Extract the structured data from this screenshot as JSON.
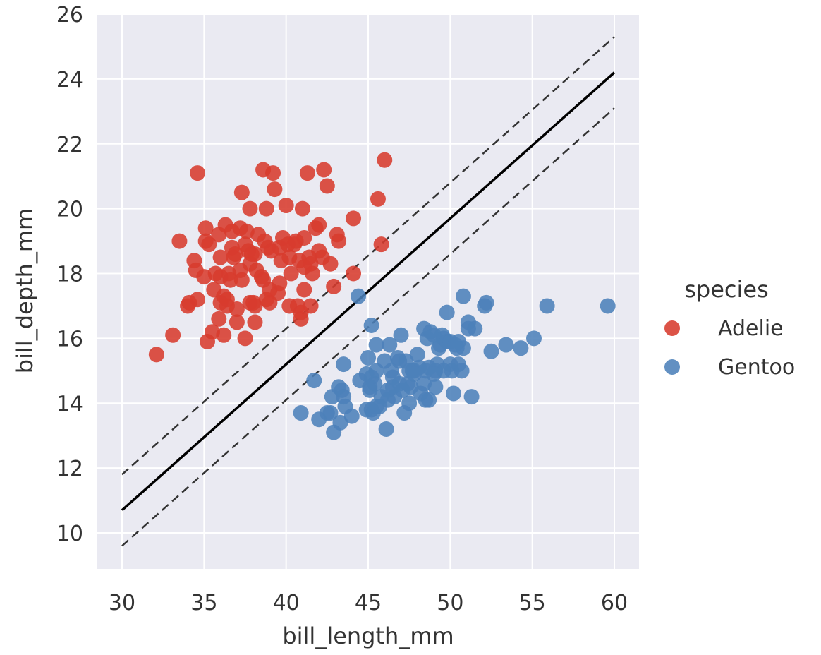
{
  "chart_data": {
    "type": "scatter",
    "title": "",
    "xlabel": "bill_length_mm",
    "ylabel": "bill_depth_mm",
    "xlim": [
      30,
      60
    ],
    "ylim": [
      10,
      26
    ],
    "xticks": [
      30,
      35,
      40,
      45,
      50,
      55,
      60
    ],
    "yticks": [
      10,
      12,
      14,
      16,
      18,
      20,
      22,
      24,
      26
    ],
    "grid": true,
    "background": "#EAEAF2",
    "legend": {
      "title": "species",
      "placement": "right"
    },
    "series": [
      {
        "name": "Adelie",
        "color": "#D73B2E",
        "points": [
          [
            32.1,
            15.5
          ],
          [
            33.1,
            16.1
          ],
          [
            33.5,
            19.0
          ],
          [
            34.1,
            17.1
          ],
          [
            34.4,
            18.4
          ],
          [
            34.5,
            18.1
          ],
          [
            34.6,
            21.1
          ],
          [
            34.6,
            17.2
          ],
          [
            35.0,
            17.9
          ],
          [
            35.1,
            19.4
          ],
          [
            35.2,
            15.9
          ],
          [
            35.3,
            18.9
          ],
          [
            35.5,
            16.2
          ],
          [
            35.6,
            17.5
          ],
          [
            35.7,
            18.0
          ],
          [
            35.9,
            19.2
          ],
          [
            36.0,
            17.9
          ],
          [
            36.0,
            17.1
          ],
          [
            36.2,
            16.1
          ],
          [
            36.2,
            17.3
          ],
          [
            36.3,
            19.5
          ],
          [
            36.4,
            17.0
          ],
          [
            36.5,
            18.0
          ],
          [
            36.6,
            17.8
          ],
          [
            36.7,
            18.8
          ],
          [
            36.8,
            18.5
          ],
          [
            36.9,
            18.6
          ],
          [
            37.0,
            16.9
          ],
          [
            37.2,
            18.1
          ],
          [
            37.3,
            20.5
          ],
          [
            37.3,
            17.8
          ],
          [
            37.5,
            18.9
          ],
          [
            37.6,
            19.3
          ],
          [
            37.7,
            18.7
          ],
          [
            37.8,
            17.1
          ],
          [
            37.8,
            20.0
          ],
          [
            37.9,
            18.6
          ],
          [
            38.0,
            17.1
          ],
          [
            38.1,
            18.6
          ],
          [
            38.2,
            18.1
          ],
          [
            38.3,
            19.2
          ],
          [
            38.5,
            17.9
          ],
          [
            38.6,
            21.2
          ],
          [
            38.7,
            19.0
          ],
          [
            38.8,
            17.2
          ],
          [
            38.9,
            18.8
          ],
          [
            39.0,
            17.5
          ],
          [
            39.1,
            18.7
          ],
          [
            39.2,
            21.1
          ],
          [
            39.3,
            20.6
          ],
          [
            39.5,
            17.4
          ],
          [
            39.6,
            18.8
          ],
          [
            39.7,
            18.4
          ],
          [
            39.8,
            19.1
          ],
          [
            40.0,
            20.1
          ],
          [
            40.1,
            18.9
          ],
          [
            40.2,
            17.0
          ],
          [
            40.3,
            18.0
          ],
          [
            40.5,
            18.9
          ],
          [
            40.6,
            19.0
          ],
          [
            40.7,
            17.0
          ],
          [
            40.8,
            18.4
          ],
          [
            40.9,
            16.6
          ],
          [
            41.0,
            20.0
          ],
          [
            41.1,
            18.2
          ],
          [
            41.1,
            19.1
          ],
          [
            41.3,
            21.1
          ],
          [
            41.4,
            18.5
          ],
          [
            41.5,
            18.3
          ],
          [
            41.6,
            18.0
          ],
          [
            41.8,
            19.4
          ],
          [
            42.0,
            19.5
          ],
          [
            42.2,
            18.5
          ],
          [
            42.3,
            21.2
          ],
          [
            42.5,
            20.7
          ],
          [
            42.7,
            18.3
          ],
          [
            42.9,
            17.6
          ],
          [
            43.1,
            19.2
          ],
          [
            44.1,
            19.7
          ],
          [
            45.6,
            20.3
          ],
          [
            45.8,
            18.9
          ],
          [
            46.0,
            21.5
          ],
          [
            44.1,
            18.0
          ],
          [
            43.2,
            19.0
          ],
          [
            36.7,
            19.3
          ],
          [
            35.9,
            16.6
          ],
          [
            37.0,
            16.5
          ],
          [
            38.1,
            17.0
          ],
          [
            39.0,
            17.1
          ],
          [
            40.9,
            16.8
          ],
          [
            37.5,
            16.0
          ],
          [
            38.8,
            20.0
          ],
          [
            35.1,
            19.0
          ],
          [
            36.4,
            17.2
          ],
          [
            38.1,
            16.5
          ],
          [
            39.6,
            17.7
          ],
          [
            41.5,
            17.0
          ],
          [
            37.8,
            18.3
          ],
          [
            36.0,
            18.5
          ],
          [
            38.6,
            17.8
          ],
          [
            40.2,
            18.5
          ],
          [
            37.2,
            19.4
          ],
          [
            41.1,
            17.5
          ],
          [
            42.0,
            18.7
          ],
          [
            34.0,
            17.0
          ]
        ]
      },
      {
        "name": "Gentoo",
        "color": "#4C81BA",
        "points": [
          [
            40.9,
            13.7
          ],
          [
            41.7,
            14.7
          ],
          [
            42.0,
            13.5
          ],
          [
            42.5,
            13.7
          ],
          [
            42.7,
            13.7
          ],
          [
            42.8,
            14.2
          ],
          [
            42.9,
            13.1
          ],
          [
            43.2,
            14.5
          ],
          [
            43.3,
            13.4
          ],
          [
            43.4,
            14.4
          ],
          [
            43.5,
            14.2
          ],
          [
            43.5,
            15.2
          ],
          [
            43.6,
            13.9
          ],
          [
            44.0,
            13.6
          ],
          [
            44.4,
            17.3
          ],
          [
            44.5,
            14.7
          ],
          [
            44.9,
            13.8
          ],
          [
            45.0,
            15.4
          ],
          [
            45.1,
            14.5
          ],
          [
            45.2,
            13.8
          ],
          [
            45.2,
            14.8
          ],
          [
            45.2,
            16.4
          ],
          [
            45.3,
            13.7
          ],
          [
            45.4,
            14.6
          ],
          [
            45.5,
            15.0
          ],
          [
            45.5,
            13.9
          ],
          [
            45.7,
            13.9
          ],
          [
            45.8,
            14.2
          ],
          [
            46.1,
            13.2
          ],
          [
            46.2,
            14.4
          ],
          [
            46.2,
            14.1
          ],
          [
            46.4,
            15.0
          ],
          [
            46.5,
            14.8
          ],
          [
            46.6,
            14.2
          ],
          [
            46.8,
            15.4
          ],
          [
            46.9,
            14.6
          ],
          [
            47.0,
            16.1
          ],
          [
            47.2,
            13.7
          ],
          [
            47.3,
            15.3
          ],
          [
            47.4,
            14.6
          ],
          [
            47.5,
            14.0
          ],
          [
            47.6,
            14.5
          ],
          [
            47.7,
            15.0
          ],
          [
            47.8,
            15.0
          ],
          [
            48.1,
            15.1
          ],
          [
            48.2,
            14.3
          ],
          [
            48.4,
            14.6
          ],
          [
            48.4,
            16.3
          ],
          [
            48.5,
            14.1
          ],
          [
            48.5,
            15.0
          ],
          [
            48.6,
            16.0
          ],
          [
            48.7,
            14.1
          ],
          [
            48.7,
            15.1
          ],
          [
            48.8,
            16.2
          ],
          [
            49.0,
            16.1
          ],
          [
            49.1,
            14.5
          ],
          [
            49.1,
            15.0
          ],
          [
            49.2,
            15.2
          ],
          [
            49.3,
            15.7
          ],
          [
            49.4,
            15.8
          ],
          [
            49.5,
            16.1
          ],
          [
            49.6,
            15.0
          ],
          [
            49.6,
            16.0
          ],
          [
            49.8,
            15.9
          ],
          [
            49.8,
            16.8
          ],
          [
            50.0,
            15.2
          ],
          [
            50.0,
            15.9
          ],
          [
            50.1,
            15.0
          ],
          [
            50.2,
            14.3
          ],
          [
            50.4,
            15.7
          ],
          [
            50.5,
            15.2
          ],
          [
            50.5,
            15.9
          ],
          [
            50.7,
            15.0
          ],
          [
            50.8,
            15.7
          ],
          [
            50.8,
            17.3
          ],
          [
            51.1,
            16.3
          ],
          [
            51.1,
            16.5
          ],
          [
            51.3,
            14.2
          ],
          [
            51.5,
            16.3
          ],
          [
            52.1,
            17.0
          ],
          [
            52.2,
            17.1
          ],
          [
            52.5,
            15.6
          ],
          [
            53.4,
            15.8
          ],
          [
            54.3,
            15.7
          ],
          [
            55.1,
            16.0
          ],
          [
            55.9,
            17.0
          ],
          [
            59.6,
            17.0
          ],
          [
            47.5,
            15.0
          ],
          [
            46.5,
            14.5
          ],
          [
            45.1,
            14.4
          ],
          [
            46.0,
            15.3
          ],
          [
            47.8,
            14.9
          ],
          [
            49.0,
            14.9
          ],
          [
            45.5,
            15.8
          ],
          [
            46.9,
            15.3
          ],
          [
            44.9,
            14.9
          ],
          [
            48.0,
            15.5
          ],
          [
            50.3,
            15.8
          ],
          [
            46.3,
            15.8
          ],
          [
            47.1,
            14.4
          ]
        ]
      }
    ],
    "lines": [
      {
        "style": "solid",
        "color": "#000000",
        "points": [
          [
            30,
            10.7
          ],
          [
            60,
            24.2
          ]
        ]
      },
      {
        "style": "dashed",
        "color": "#333333",
        "points": [
          [
            30,
            11.8
          ],
          [
            60,
            25.3
          ]
        ]
      },
      {
        "style": "dashed",
        "color": "#333333",
        "points": [
          [
            30,
            9.6
          ],
          [
            60,
            23.1
          ]
        ]
      }
    ]
  }
}
